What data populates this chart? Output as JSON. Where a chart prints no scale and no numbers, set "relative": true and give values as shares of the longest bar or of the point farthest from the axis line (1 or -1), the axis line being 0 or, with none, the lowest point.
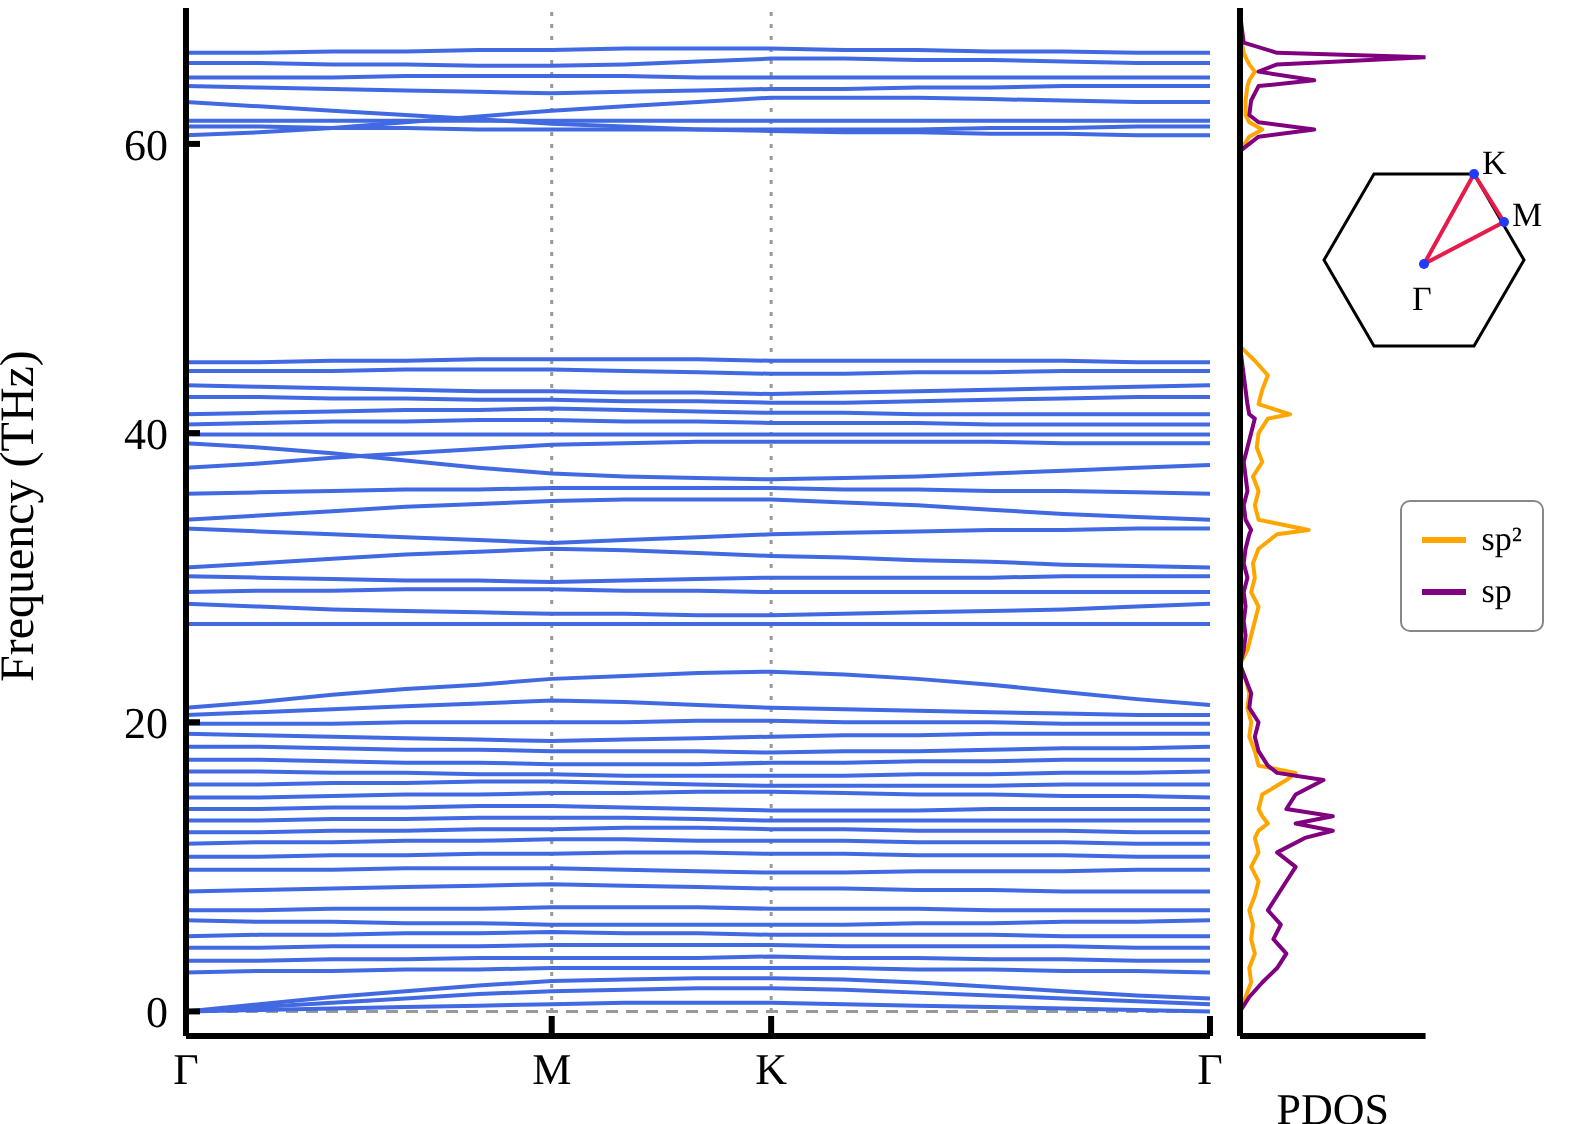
{
  "chart_data": [
    {
      "type": "line",
      "ylabel": "Frequency (THz)",
      "categories": [
        "Γ",
        null,
        null,
        null,
        null,
        "M",
        null,
        null,
        "K",
        null,
        null,
        null,
        null,
        null,
        "Γ"
      ],
      "ylim": [
        -1.7,
        69.4
      ],
      "yticks": [
        0,
        20,
        40,
        60
      ],
      "legend": false,
      "marker": "none",
      "line_style": "solid",
      "ref_lines": [
        {
          "axis": "y",
          "value": 0,
          "color": "#999999",
          "line_style": "dashed"
        },
        {
          "axis": "x",
          "value": "M",
          "color": "#999999",
          "line_style": "dotted"
        },
        {
          "axis": "x",
          "value": "K",
          "color": "#999999",
          "line_style": "dotted"
        }
      ],
      "series": [
        {
          "color": "#4169e1",
          "values": [
            66.3,
            66.3,
            66.4,
            66.4,
            66.5,
            66.5,
            66.6,
            66.6,
            66.6,
            66.5,
            66.5,
            66.4,
            66.4,
            66.3,
            66.3
          ]
        },
        {
          "color": "#4169e1",
          "values": [
            65.6,
            65.6,
            65.5,
            65.5,
            65.4,
            65.4,
            65.5,
            65.7,
            65.9,
            65.9,
            65.8,
            65.8,
            65.7,
            65.6,
            65.6
          ]
        },
        {
          "color": "#4169e1",
          "values": [
            64.6,
            64.6,
            64.6,
            64.7,
            64.7,
            64.7,
            64.7,
            64.6,
            64.6,
            64.6,
            64.6,
            64.6,
            64.6,
            64.6,
            64.6
          ]
        },
        {
          "color": "#4169e1",
          "values": [
            64.0,
            63.9,
            63.8,
            63.7,
            63.6,
            63.5,
            63.6,
            63.7,
            63.8,
            63.8,
            63.9,
            63.9,
            64.0,
            64.0,
            64.0
          ]
        },
        {
          "color": "#4169e1",
          "values": [
            62.9,
            62.6,
            62.3,
            62.0,
            61.7,
            61.4,
            61.2,
            61.0,
            60.9,
            60.8,
            60.8,
            60.7,
            60.7,
            60.6,
            60.6
          ]
        },
        {
          "color": "#4169e1",
          "values": [
            60.6,
            60.8,
            61.1,
            61.5,
            61.9,
            62.3,
            62.6,
            62.9,
            63.2,
            63.2,
            63.2,
            63.1,
            63.0,
            62.9,
            62.9
          ]
        },
        {
          "color": "#4169e1",
          "values": [
            61.6,
            61.6,
            61.6,
            61.6,
            61.6,
            61.6,
            61.6,
            61.6,
            61.6,
            61.6,
            61.6,
            61.6,
            61.6,
            61.6,
            61.6
          ]
        },
        {
          "color": "#4169e1",
          "values": [
            61.2,
            61.2,
            61.1,
            61.1,
            61.0,
            61.0,
            61.0,
            61.0,
            61.0,
            61.0,
            61.0,
            61.1,
            61.1,
            61.2,
            61.2
          ]
        },
        {
          "color": "#4169e1",
          "values": [
            44.9,
            44.9,
            45.0,
            45.0,
            45.1,
            45.1,
            45.1,
            45.1,
            45.0,
            45.0,
            45.0,
            45.0,
            45.0,
            44.9,
            44.9
          ]
        },
        {
          "color": "#4169e1",
          "values": [
            44.3,
            44.3,
            44.3,
            44.4,
            44.4,
            44.4,
            44.3,
            44.2,
            44.1,
            44.1,
            44.2,
            44.2,
            44.3,
            44.3,
            44.3
          ]
        },
        {
          "color": "#4169e1",
          "values": [
            43.3,
            43.2,
            43.1,
            43.0,
            42.9,
            42.9,
            42.8,
            42.8,
            42.7,
            42.8,
            42.9,
            43.0,
            43.1,
            43.2,
            43.3
          ]
        },
        {
          "color": "#4169e1",
          "values": [
            42.5,
            42.5,
            42.4,
            42.4,
            42.3,
            42.3,
            42.2,
            42.2,
            42.1,
            42.1,
            42.2,
            42.3,
            42.4,
            42.5,
            42.5
          ]
        },
        {
          "color": "#4169e1",
          "values": [
            41.3,
            41.4,
            41.5,
            41.6,
            41.6,
            41.7,
            41.6,
            41.5,
            41.4,
            41.4,
            41.3,
            41.3,
            41.3,
            41.3,
            41.3
          ]
        },
        {
          "color": "#4169e1",
          "values": [
            40.6,
            40.7,
            40.8,
            40.8,
            40.9,
            40.9,
            40.8,
            40.8,
            40.7,
            40.7,
            40.7,
            40.6,
            40.6,
            40.6,
            40.6
          ]
        },
        {
          "color": "#4169e1",
          "values": [
            39.9,
            39.9,
            39.9,
            39.9,
            39.9,
            39.9,
            39.9,
            39.9,
            39.9,
            39.9,
            39.9,
            39.9,
            39.9,
            39.9,
            39.9
          ]
        },
        {
          "color": "#4169e1",
          "values": [
            39.3,
            39.0,
            38.6,
            38.1,
            37.6,
            37.2,
            37.0,
            36.9,
            36.8,
            36.9,
            37.0,
            37.2,
            37.4,
            37.6,
            37.8
          ]
        },
        {
          "color": "#4169e1",
          "values": [
            37.6,
            37.9,
            38.3,
            38.6,
            38.9,
            39.2,
            39.3,
            39.4,
            39.4,
            39.4,
            39.4,
            39.4,
            39.3,
            39.3,
            39.3
          ]
        },
        {
          "color": "#4169e1",
          "values": [
            35.8,
            35.9,
            36.0,
            36.1,
            36.1,
            36.2,
            36.2,
            36.2,
            36.2,
            36.1,
            36.1,
            36.0,
            36.0,
            35.9,
            35.8
          ]
        },
        {
          "color": "#4169e1",
          "values": [
            34.0,
            34.3,
            34.6,
            34.9,
            35.1,
            35.3,
            35.4,
            35.4,
            35.4,
            35.2,
            35.0,
            34.7,
            34.4,
            34.2,
            34.0
          ]
        },
        {
          "color": "#4169e1",
          "values": [
            33.4,
            33.2,
            33.0,
            32.8,
            32.6,
            32.4,
            32.6,
            32.8,
            33.0,
            33.1,
            33.2,
            33.3,
            33.3,
            33.4,
            33.4
          ]
        },
        {
          "color": "#4169e1",
          "values": [
            30.7,
            31.0,
            31.3,
            31.6,
            31.8,
            32.0,
            31.9,
            31.7,
            31.5,
            31.4,
            31.2,
            31.1,
            30.9,
            30.8,
            30.7
          ]
        },
        {
          "color": "#4169e1",
          "values": [
            30.1,
            30.0,
            29.9,
            29.8,
            29.8,
            29.7,
            29.8,
            29.9,
            30.0,
            30.0,
            30.0,
            30.0,
            30.1,
            30.1,
            30.1
          ]
        },
        {
          "color": "#4169e1",
          "values": [
            29.0,
            29.1,
            29.1,
            29.2,
            29.2,
            29.2,
            29.1,
            29.1,
            29.0,
            29.0,
            29.0,
            29.0,
            29.0,
            29.0,
            29.0
          ]
        },
        {
          "color": "#4169e1",
          "values": [
            28.2,
            28.0,
            27.8,
            27.7,
            27.6,
            27.5,
            27.5,
            27.4,
            27.4,
            27.5,
            27.6,
            27.7,
            27.8,
            28.0,
            28.2
          ]
        },
        {
          "color": "#4169e1",
          "values": [
            26.8,
            26.8,
            26.8,
            26.8,
            26.8,
            26.8,
            26.8,
            26.8,
            26.8,
            26.8,
            26.8,
            26.8,
            26.8,
            26.8,
            26.8
          ]
        },
        {
          "color": "#4169e1",
          "values": [
            21.0,
            21.4,
            21.9,
            22.3,
            22.6,
            23.0,
            23.2,
            23.4,
            23.5,
            23.3,
            23.0,
            22.6,
            22.1,
            21.6,
            21.2
          ]
        },
        {
          "color": "#4169e1",
          "values": [
            20.5,
            20.7,
            20.9,
            21.1,
            21.3,
            21.5,
            21.4,
            21.2,
            21.0,
            20.9,
            20.8,
            20.7,
            20.6,
            20.5,
            20.5
          ]
        },
        {
          "color": "#4169e1",
          "values": [
            19.9,
            19.9,
            19.9,
            20.0,
            20.0,
            20.0,
            20.0,
            20.1,
            20.1,
            20.0,
            20.0,
            20.0,
            19.9,
            19.9,
            19.9
          ]
        },
        {
          "color": "#4169e1",
          "values": [
            19.2,
            19.1,
            19.0,
            18.9,
            18.8,
            18.7,
            18.8,
            18.9,
            19.0,
            19.1,
            19.1,
            19.2,
            19.2,
            19.2,
            19.2
          ]
        },
        {
          "color": "#4169e1",
          "values": [
            18.3,
            18.3,
            18.2,
            18.1,
            18.1,
            18.0,
            18.0,
            18.0,
            17.9,
            18.0,
            18.0,
            18.1,
            18.2,
            18.2,
            18.3
          ]
        },
        {
          "color": "#4169e1",
          "values": [
            17.4,
            17.4,
            17.3,
            17.2,
            17.2,
            17.1,
            17.1,
            17.1,
            17.2,
            17.2,
            17.3,
            17.3,
            17.4,
            17.4,
            17.4
          ]
        },
        {
          "color": "#4169e1",
          "values": [
            16.6,
            16.6,
            16.5,
            16.5,
            16.4,
            16.4,
            16.3,
            16.3,
            16.3,
            16.3,
            16.4,
            16.4,
            16.5,
            16.5,
            16.6
          ]
        },
        {
          "color": "#4169e1",
          "values": [
            15.7,
            15.7,
            15.8,
            15.8,
            15.9,
            15.9,
            15.8,
            15.7,
            15.6,
            15.6,
            15.6,
            15.6,
            15.7,
            15.7,
            15.7
          ]
        },
        {
          "color": "#4169e1",
          "values": [
            14.8,
            14.8,
            14.9,
            15.0,
            15.0,
            15.1,
            15.1,
            15.2,
            15.2,
            15.1,
            15.0,
            15.0,
            14.9,
            14.9,
            14.8
          ]
        },
        {
          "color": "#4169e1",
          "values": [
            14.0,
            14.0,
            14.1,
            14.1,
            14.2,
            14.2,
            14.1,
            14.0,
            13.9,
            13.9,
            13.9,
            14.0,
            14.0,
            14.0,
            14.0
          ]
        },
        {
          "color": "#4169e1",
          "values": [
            13.2,
            13.2,
            13.3,
            13.3,
            13.4,
            13.4,
            13.4,
            13.3,
            13.2,
            13.2,
            13.2,
            13.2,
            13.2,
            13.2,
            13.2
          ]
        },
        {
          "color": "#4169e1",
          "values": [
            12.4,
            12.4,
            12.5,
            12.5,
            12.6,
            12.6,
            12.7,
            12.7,
            12.6,
            12.6,
            12.5,
            12.5,
            12.5,
            12.4,
            12.4
          ]
        },
        {
          "color": "#4169e1",
          "values": [
            11.6,
            11.7,
            11.7,
            11.8,
            11.8,
            11.9,
            11.9,
            11.8,
            11.8,
            11.8,
            11.7,
            11.7,
            11.7,
            11.6,
            11.6
          ]
        },
        {
          "color": "#4169e1",
          "values": [
            10.7,
            10.7,
            10.8,
            10.8,
            10.9,
            10.9,
            11.0,
            11.0,
            10.9,
            10.9,
            10.8,
            10.8,
            10.8,
            10.7,
            10.7
          ]
        },
        {
          "color": "#4169e1",
          "values": [
            9.8,
            9.8,
            9.8,
            9.9,
            9.9,
            9.9,
            9.8,
            9.7,
            9.6,
            9.6,
            9.7,
            9.7,
            9.7,
            9.8,
            9.8
          ]
        },
        {
          "color": "#4169e1",
          "values": [
            8.3,
            8.4,
            8.5,
            8.6,
            8.7,
            8.8,
            8.7,
            8.6,
            8.5,
            8.5,
            8.4,
            8.4,
            8.3,
            8.3,
            8.3
          ]
        },
        {
          "color": "#4169e1",
          "values": [
            7.0,
            7.0,
            7.1,
            7.1,
            7.1,
            7.2,
            7.2,
            7.2,
            7.1,
            7.1,
            7.1,
            7.0,
            7.0,
            7.0,
            7.0
          ]
        },
        {
          "color": "#4169e1",
          "values": [
            6.3,
            6.2,
            6.2,
            6.1,
            6.1,
            6.0,
            6.0,
            6.0,
            6.0,
            6.0,
            6.1,
            6.1,
            6.2,
            6.2,
            6.3
          ]
        },
        {
          "color": "#4169e1",
          "values": [
            5.2,
            5.3,
            5.3,
            5.4,
            5.4,
            5.5,
            5.4,
            5.4,
            5.3,
            5.3,
            5.3,
            5.3,
            5.2,
            5.2,
            5.2
          ]
        },
        {
          "color": "#4169e1",
          "values": [
            4.4,
            4.4,
            4.5,
            4.5,
            4.5,
            4.6,
            4.6,
            4.6,
            4.6,
            4.5,
            4.5,
            4.5,
            4.5,
            4.4,
            4.4
          ]
        },
        {
          "color": "#4169e1",
          "values": [
            3.5,
            3.5,
            3.6,
            3.6,
            3.7,
            3.7,
            3.7,
            3.7,
            3.8,
            3.7,
            3.7,
            3.6,
            3.6,
            3.5,
            3.5
          ]
        },
        {
          "color": "#4169e1",
          "values": [
            2.7,
            2.8,
            2.8,
            2.9,
            2.9,
            3.0,
            3.0,
            3.0,
            3.0,
            3.0,
            2.9,
            2.9,
            2.8,
            2.8,
            2.7
          ]
        },
        {
          "color": "#4169e1",
          "values": [
            0,
            0.5,
            1.0,
            1.4,
            1.8,
            2.1,
            2.2,
            2.3,
            2.3,
            2.2,
            2.0,
            1.7,
            1.4,
            1.1,
            0.9
          ]
        },
        {
          "color": "#4169e1",
          "values": [
            0,
            0.3,
            0.6,
            0.9,
            1.2,
            1.4,
            1.5,
            1.6,
            1.6,
            1.5,
            1.3,
            1.1,
            0.9,
            0.7,
            0.5
          ]
        },
        {
          "color": "#4169e1",
          "values": [
            0,
            0.1,
            0.2,
            0.3,
            0.4,
            0.5,
            0.6,
            0.6,
            0.6,
            0.5,
            0.4,
            0.3,
            0.2,
            0.1,
            0
          ]
        }
      ]
    },
    {
      "type": "line",
      "orientation": "horizontal",
      "relative": true,
      "xlabel": "PDOS",
      "ylim": [
        -1.7,
        69.4
      ],
      "tick_labels": false,
      "legend": "right",
      "marker": "none",
      "line_style": "solid",
      "annotations": [
        "K",
        "M",
        "Γ"
      ],
      "x": [
        0,
        1,
        2,
        3,
        4,
        5,
        6,
        7,
        8,
        9,
        10,
        11,
        12,
        12.5,
        13,
        13.5,
        14,
        15,
        16,
        16.5,
        17,
        18,
        19,
        20,
        21,
        22,
        23,
        24,
        25,
        26,
        27,
        28,
        29,
        30,
        31,
        32,
        33,
        33.3,
        34,
        35,
        36,
        37,
        38,
        39,
        40,
        41,
        41.3,
        42,
        43,
        44,
        45,
        46,
        50,
        55,
        59.5,
        60.5,
        61,
        61.5,
        62,
        63,
        64,
        64.4,
        65,
        65.5,
        66,
        66.3,
        67,
        69
      ],
      "series": [
        {
          "name": "sp²",
          "color": "#ffa500",
          "values": [
            0,
            0.03,
            0.06,
            0.05,
            0.08,
            0.06,
            0.07,
            0.05,
            0.08,
            0.1,
            0.06,
            0.1,
            0.08,
            0.1,
            0.15,
            0.12,
            0.1,
            0.12,
            0.25,
            0.3,
            0.1,
            0.08,
            0.05,
            0.06,
            0.04,
            0.05,
            0.03,
            0,
            0.04,
            0.06,
            0.08,
            0.1,
            0.06,
            0.08,
            0.07,
            0.1,
            0.2,
            0.37,
            0.1,
            0.08,
            0.1,
            0.07,
            0.12,
            0.09,
            0.1,
            0.15,
            0.27,
            0.1,
            0.12,
            0.15,
            0.08,
            0,
            0,
            0,
            0,
            0.05,
            0.12,
            0.05,
            0.03,
            0.03,
            0.04,
            0.05,
            0.08,
            0.05,
            0.03,
            0.02,
            0.01,
            0
          ]
        },
        {
          "name": "sp",
          "color": "#800080",
          "values": [
            0,
            0.05,
            0.12,
            0.2,
            0.25,
            0.18,
            0.22,
            0.15,
            0.2,
            0.25,
            0.3,
            0.2,
            0.35,
            0.5,
            0.3,
            0.5,
            0.25,
            0.3,
            0.45,
            0.2,
            0.15,
            0.1,
            0.08,
            0.1,
            0.05,
            0.06,
            0.03,
            0,
            0.02,
            0.03,
            0.02,
            0.03,
            0.02,
            0.04,
            0.02,
            0.03,
            0.05,
            0.06,
            0.03,
            0.02,
            0.04,
            0.03,
            0.02,
            0.04,
            0.06,
            0.08,
            0.05,
            0.04,
            0.03,
            0.02,
            0.01,
            0,
            0,
            0,
            0,
            0.1,
            0.4,
            0.1,
            0.05,
            0.06,
            0.1,
            0.4,
            0.1,
            0.2,
            1,
            0.2,
            0.02,
            0
          ]
        }
      ]
    }
  ]
}
